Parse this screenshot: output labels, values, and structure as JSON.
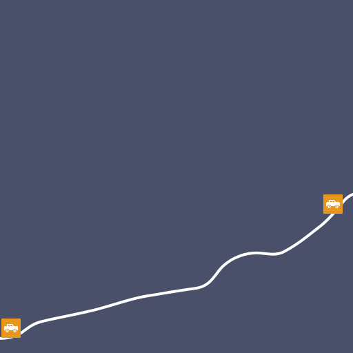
{
  "map": {
    "background_color": "#4a506a",
    "road_color": "#ffffff",
    "road_type": "trail"
  },
  "markers": [
    {
      "icon": "jeep-icon",
      "color": "#e8961c",
      "icon_color": "#ffffff"
    },
    {
      "icon": "jeep-icon",
      "color": "#e8961c",
      "icon_color": "#ffffff"
    }
  ]
}
